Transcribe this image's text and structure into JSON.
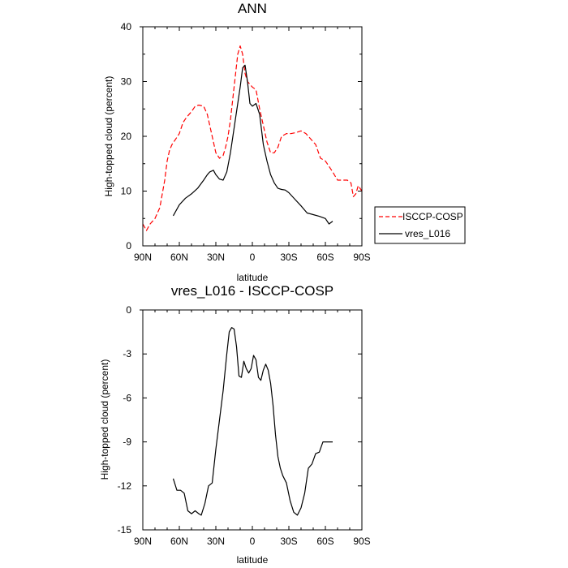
{
  "chart_data": [
    {
      "type": "line",
      "title": "ANN",
      "xlabel": "latitude",
      "ylabel": "High-topped cloud (percent)",
      "xlim": [
        90,
        -90
      ],
      "ylim": [
        0,
        40
      ],
      "xticks": [
        90,
        60,
        30,
        0,
        -30,
        -60,
        -90
      ],
      "xtick_labels": [
        "90N",
        "60N",
        "30N",
        "0",
        "30S",
        "60S",
        "90S"
      ],
      "yticks": [
        0,
        10,
        20,
        30,
        40
      ],
      "ytick_labels": [
        "0",
        "10",
        "20",
        "30",
        "40"
      ],
      "legend": {
        "placement": "right-outside"
      },
      "series": [
        {
          "name": "ISCCP-COSP",
          "color": "#ff0000",
          "style": "dashed",
          "x": [
            90,
            87,
            84,
            80,
            76,
            72,
            70,
            68,
            66,
            63,
            60,
            57,
            54,
            50,
            47,
            44,
            40,
            37,
            34,
            30,
            27,
            24,
            22,
            20,
            18,
            16,
            14,
            12,
            10,
            8,
            6,
            4,
            2,
            0,
            -3,
            -6,
            -9,
            -12,
            -15,
            -18,
            -21,
            -24,
            -28,
            -32,
            -36,
            -40,
            -44,
            -48,
            -52,
            -56,
            -60,
            -63,
            -66,
            -70,
            -74,
            -78,
            -81,
            -83,
            -85,
            -87,
            -90
          ],
          "y": [
            4,
            2.8,
            4,
            5,
            7,
            12,
            15.5,
            17.5,
            18.5,
            19.5,
            20.5,
            22.5,
            23.5,
            24.5,
            25.5,
            25.7,
            25.5,
            24,
            21,
            17,
            16,
            16.5,
            18,
            20,
            23,
            27,
            31,
            35,
            36.5,
            35,
            31.5,
            30,
            29.5,
            29,
            28.5,
            25,
            22,
            19,
            17,
            17,
            18,
            20,
            20.5,
            20.5,
            20.7,
            21,
            20.5,
            19.5,
            18.5,
            16,
            15.5,
            14.5,
            13.5,
            12,
            12,
            12,
            11.5,
            9,
            9.5,
            11,
            10
          ]
        },
        {
          "name": "vres_L016",
          "color": "#000000",
          "style": "solid",
          "x": [
            65,
            60,
            55,
            50,
            45,
            40,
            37,
            35,
            32,
            30,
            27,
            24,
            21,
            18,
            15,
            12,
            10,
            8,
            6,
            4,
            2,
            0,
            -3,
            -6,
            -9,
            -12,
            -15,
            -18,
            -21,
            -24,
            -27,
            -30,
            -35,
            -40,
            -45,
            -50,
            -55,
            -60,
            -63,
            -66
          ],
          "y": [
            5.5,
            7.5,
            8.7,
            9.5,
            10.5,
            12,
            13,
            13.5,
            13.8,
            13,
            12.2,
            12,
            13.5,
            17,
            21.5,
            26,
            29,
            32.5,
            33,
            30,
            26,
            25.5,
            26,
            24,
            18.5,
            15.5,
            13,
            11.5,
            10.5,
            10.3,
            10.2,
            9.7,
            8.5,
            7.3,
            6,
            5.7,
            5.4,
            5,
            4,
            4.5
          ]
        }
      ]
    },
    {
      "type": "line",
      "title": "vres_L016 - ISCCP-COSP",
      "xlabel": "latitude",
      "ylabel": "High-topped cloud (percent)",
      "xlim": [
        90,
        -90
      ],
      "ylim": [
        -15,
        0
      ],
      "xticks": [
        90,
        60,
        30,
        0,
        -30,
        -60,
        -90
      ],
      "xtick_labels": [
        "90N",
        "60N",
        "30N",
        "0",
        "30S",
        "60S",
        "90S"
      ],
      "yticks": [
        0,
        -3,
        -6,
        -9,
        -12,
        -15
      ],
      "ytick_labels": [
        "0",
        "-3",
        "-6",
        "-9",
        "-12",
        "-15"
      ],
      "series": [
        {
          "name": "vres_L016 - ISCCP-COSP",
          "color": "#000000",
          "style": "solid",
          "x": [
            65,
            62,
            59,
            56,
            53,
            50,
            47,
            44,
            42,
            39,
            36,
            33,
            30,
            27,
            24,
            21,
            19,
            17,
            15,
            13,
            11,
            9,
            7,
            5,
            3,
            1,
            -1,
            -3,
            -5,
            -7,
            -9,
            -11,
            -13,
            -15,
            -17,
            -19,
            -21,
            -23,
            -25,
            -28,
            -31,
            -34,
            -37,
            -40,
            -43,
            -46,
            -49,
            -52,
            -55,
            -58,
            -60,
            -62,
            -64,
            -66
          ],
          "y": [
            -11.5,
            -12.3,
            -12.3,
            -12.5,
            -13.7,
            -13.9,
            -13.7,
            -13.9,
            -14,
            -13.2,
            -12,
            -11.8,
            -9.5,
            -7.5,
            -5.5,
            -3,
            -1.5,
            -1.2,
            -1.3,
            -2.5,
            -4.5,
            -4.6,
            -3.5,
            -4,
            -4.3,
            -4,
            -3.1,
            -3.4,
            -4.6,
            -4.8,
            -4.1,
            -3.7,
            -4.1,
            -5,
            -6.5,
            -8.5,
            -10,
            -10.8,
            -11.3,
            -11.8,
            -13,
            -13.8,
            -14,
            -13.5,
            -12.5,
            -10.8,
            -10.5,
            -9.8,
            -9.7,
            -9,
            -9,
            -9,
            -9,
            -9
          ]
        }
      ]
    }
  ]
}
